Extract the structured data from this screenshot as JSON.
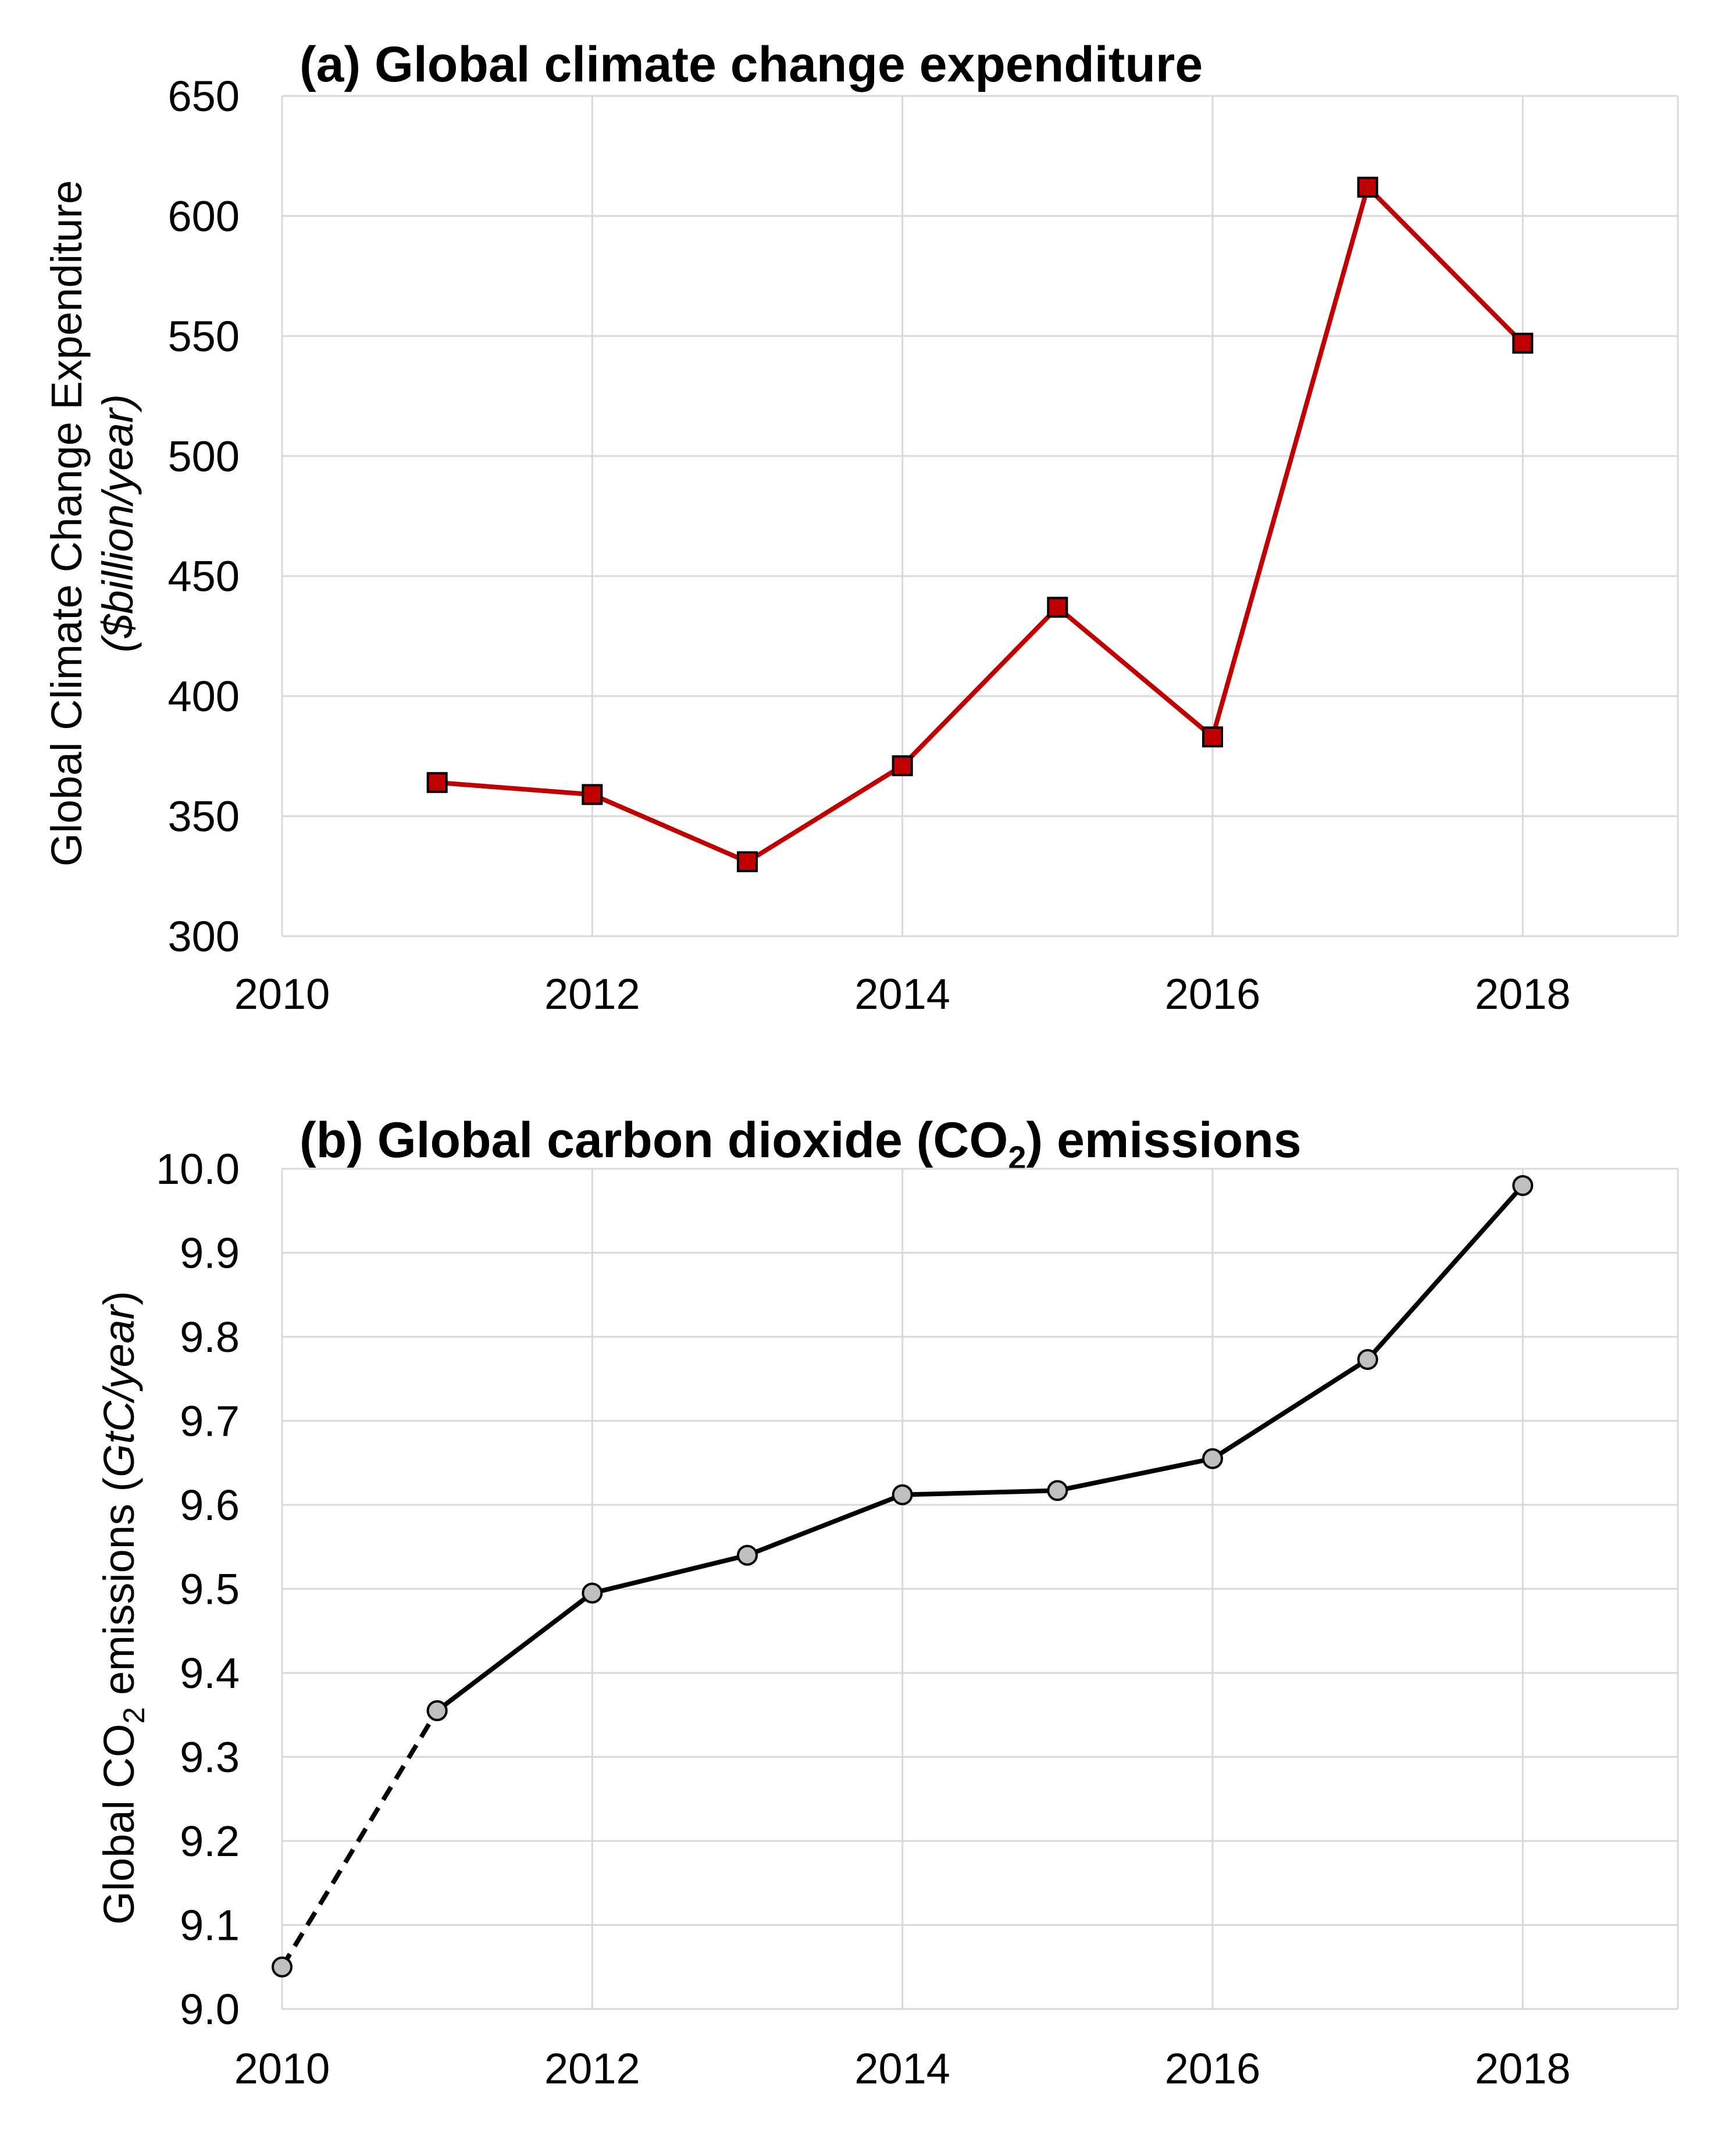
{
  "chart_data": [
    {
      "type": "line",
      "title": "(a) Global climate change expenditure",
      "ylabel_line1": "Global Climate Change Expenditure",
      "ylabel_line2": "($billion/year)",
      "xlabel": "",
      "xlim": [
        2010,
        2019
      ],
      "ylim": [
        300,
        650
      ],
      "xticks": [
        2010,
        2012,
        2014,
        2016,
        2018
      ],
      "yticks": [
        300,
        350,
        400,
        450,
        500,
        550,
        600,
        650
      ],
      "grid": true,
      "series": [
        {
          "name": "Global climate change expenditure",
          "color": "#c00000",
          "marker": "square",
          "marker_fill": "#c00000",
          "x": [
            2011,
            2012,
            2013,
            2014,
            2015,
            2016,
            2017,
            2018
          ],
          "values": [
            364,
            359,
            331,
            371,
            437,
            383,
            612,
            547
          ]
        }
      ]
    },
    {
      "type": "line",
      "title_main": "(b) Global carbon dioxide (CO",
      "title_sub": "2",
      "title_end": ") emissions",
      "ylabel_pre": "Global CO",
      "ylabel_sub": "2",
      "ylabel_post": " emissions (",
      "ylabel_unit": "GtC/year",
      "ylabel_close": ")",
      "xlabel": "",
      "xlim": [
        2010,
        2019
      ],
      "ylim": [
        9.0,
        10.0
      ],
      "xticks": [
        2010,
        2012,
        2014,
        2016,
        2018
      ],
      "yticks": [
        9.0,
        9.1,
        9.2,
        9.3,
        9.4,
        9.5,
        9.6,
        9.7,
        9.8,
        9.9,
        10.0
      ],
      "grid": true,
      "series": [
        {
          "name": "Global CO2 emissions (dashed segment)",
          "color": "#000000",
          "dashed": true,
          "marker": "circle",
          "marker_fill": "#bfbfbf",
          "x": [
            2010,
            2011
          ],
          "values": [
            9.05,
            9.355
          ]
        },
        {
          "name": "Global CO2 emissions",
          "color": "#000000",
          "dashed": false,
          "marker": "circle",
          "marker_fill": "#bfbfbf",
          "x": [
            2011,
            2012,
            2013,
            2014,
            2015,
            2016,
            2017,
            2018
          ],
          "values": [
            9.355,
            9.495,
            9.54,
            9.612,
            9.617,
            9.655,
            9.773,
            9.98
          ]
        }
      ]
    }
  ]
}
